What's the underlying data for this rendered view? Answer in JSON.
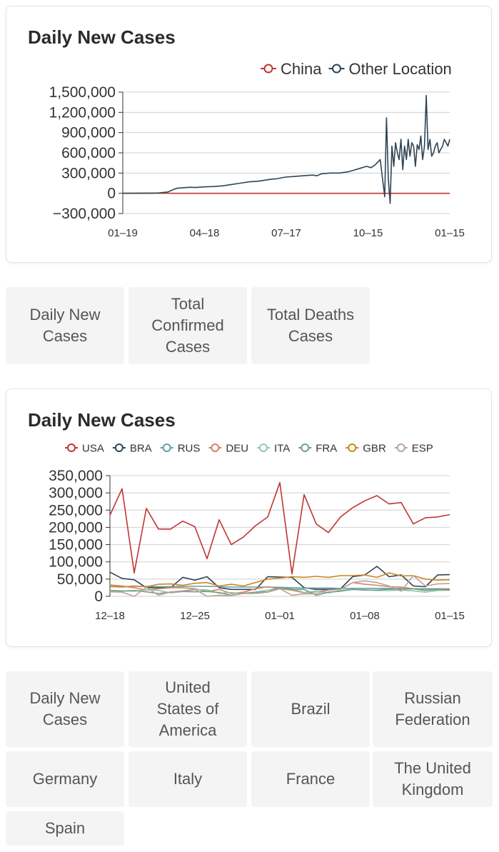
{
  "chart_data": [
    {
      "type": "line",
      "title": "Daily New Cases",
      "x_ticks": [
        "01–19",
        "04–18",
        "07–17",
        "10–15",
        "01–15"
      ],
      "y_ticks": [
        "1,500,000",
        "1,200,000",
        "900,000",
        "600,000",
        "300,000",
        "0",
        "−300,000"
      ],
      "ylim": [
        -300000,
        1500000
      ],
      "x_range_days": [
        0,
        362
      ],
      "grid": true,
      "legend_position": "top-right",
      "series": [
        {
          "name": "China",
          "color": "#c23531",
          "x": [
            0,
            10,
            20,
            30,
            40,
            50,
            60,
            90,
            120,
            150,
            180,
            210,
            240,
            270,
            300,
            330,
            362
          ],
          "values": [
            200,
            1500,
            3000,
            2500,
            600,
            200,
            100,
            50,
            30,
            40,
            50,
            30,
            20,
            20,
            20,
            100,
            150
          ]
        },
        {
          "name": "Other Location",
          "color": "#2f4554",
          "x": [
            0,
            10,
            20,
            30,
            40,
            50,
            55,
            60,
            65,
            70,
            75,
            80,
            90,
            100,
            110,
            120,
            130,
            140,
            150,
            160,
            165,
            170,
            180,
            190,
            200,
            210,
            215,
            220,
            230,
            240,
            250,
            255,
            260,
            265,
            270,
            275,
            280,
            285,
            290,
            292,
            294,
            296,
            298,
            300,
            302,
            304,
            306,
            308,
            310,
            312,
            314,
            316,
            318,
            320,
            322,
            324,
            326,
            328,
            330,
            332,
            334,
            336,
            338,
            340,
            342,
            344,
            346,
            348,
            350,
            352,
            354,
            356,
            358,
            360,
            362
          ],
          "values": [
            0,
            100,
            500,
            1000,
            5000,
            20000,
            50000,
            75000,
            80000,
            85000,
            90000,
            85000,
            95000,
            100000,
            110000,
            130000,
            150000,
            170000,
            180000,
            200000,
            210000,
            215000,
            240000,
            250000,
            260000,
            270000,
            260000,
            290000,
            300000,
            300000,
            320000,
            340000,
            360000,
            380000,
            400000,
            380000,
            430000,
            500000,
            -50000,
            1120000,
            200000,
            -150000,
            700000,
            400000,
            750000,
            600000,
            500000,
            800000,
            350000,
            700000,
            500000,
            800000,
            550000,
            750000,
            700000,
            400000,
            720000,
            650000,
            850000,
            500000,
            700000,
            1450000,
            650000,
            800000,
            550000,
            600000,
            700000,
            750000,
            600000,
            650000,
            700000,
            800000,
            750000,
            700000,
            800000
          ]
        }
      ]
    },
    {
      "type": "line",
      "title": "Daily New Cases",
      "x_ticks": [
        "12–18",
        "12–25",
        "01–01",
        "01–08",
        "01–15"
      ],
      "y_ticks": [
        "350,000",
        "300,000",
        "250,000",
        "200,000",
        "150,000",
        "100,000",
        "50,000",
        "0"
      ],
      "ylim": [
        0,
        350000
      ],
      "x_range_days": [
        0,
        28
      ],
      "grid": true,
      "legend_position": "top",
      "series": [
        {
          "name": "USA",
          "color": "#c23531",
          "values": [
            235000,
            312000,
            68000,
            255000,
            195000,
            195000,
            218000,
            202000,
            109000,
            222000,
            150000,
            172000,
            205000,
            230000,
            330000,
            65000,
            295000,
            210000,
            185000,
            230000,
            257000,
            277000,
            292000,
            268000,
            272000,
            210000,
            228000,
            230000,
            237000
          ]
        },
        {
          "name": "BRA",
          "color": "#2f4554",
          "values": [
            70000,
            52000,
            48000,
            25000,
            25000,
            25000,
            55000,
            47000,
            57000,
            25000,
            20000,
            20000,
            20000,
            57000,
            56000,
            55000,
            25000,
            20000,
            20000,
            22000,
            57000,
            62000,
            87000,
            57000,
            62000,
            30000,
            28000,
            62000,
            63000
          ]
        },
        {
          "name": "RUS",
          "color": "#61a0a8",
          "values": [
            29000,
            28000,
            29000,
            29000,
            28000,
            28000,
            29000,
            29000,
            29000,
            28000,
            27000,
            27000,
            27000,
            27000,
            26000,
            25000,
            24000,
            24000,
            24000,
            23000,
            23000,
            23000,
            23000,
            23000,
            23000,
            22000,
            22000,
            22000,
            22000
          ]
        },
        {
          "name": "DEU",
          "color": "#d48265",
          "values": [
            33000,
            30000,
            25000,
            18000,
            22000,
            25000,
            25000,
            22000,
            14000,
            20000,
            8000,
            12000,
            22000,
            28000,
            22000,
            18000,
            10000,
            13000,
            18000,
            20000,
            40000,
            35000,
            32000,
            28000,
            27000,
            22000,
            18000,
            20000,
            21000
          ]
        },
        {
          "name": "ITA",
          "color": "#91c7ae",
          "values": [
            17000,
            16000,
            15000,
            19000,
            17000,
            10000,
            14000,
            19000,
            19000,
            9000,
            11000,
            8000,
            12000,
            18000,
            23000,
            22000,
            11000,
            15000,
            10000,
            17000,
            20000,
            19000,
            17000,
            17000,
            18000,
            16000,
            12000,
            17000,
            18000
          ]
        },
        {
          "name": "FRA",
          "color": "#749f83",
          "values": [
            17000,
            15000,
            17000,
            13000,
            8000,
            12000,
            14000,
            13000,
            14000,
            11000,
            3000,
            9000,
            12000,
            13000,
            25000,
            20000,
            20000,
            3000,
            12000,
            15000,
            20000,
            18000,
            18000,
            21000,
            20000,
            22000,
            17000,
            20000,
            18000
          ]
        },
        {
          "name": "GBR",
          "color": "#ca8622",
          "values": [
            28000,
            27000,
            30000,
            28000,
            35000,
            36000,
            32000,
            38000,
            40000,
            30000,
            35000,
            30000,
            40000,
            50000,
            53000,
            57000,
            55000,
            58000,
            55000,
            60000,
            60000,
            62000,
            55000,
            68000,
            59000,
            60000,
            50000,
            47000,
            48000
          ]
        },
        {
          "name": "ESP",
          "color": "#bda29a",
          "values": [
            13000,
            12000,
            0,
            26000,
            3000,
            13000,
            16000,
            20000,
            0,
            3000,
            2000,
            8000,
            8000,
            12000,
            22000,
            3000,
            7000,
            7000,
            18000,
            20000,
            40000,
            45000,
            40000,
            30000,
            15000,
            60000,
            30000,
            36000,
            37000
          ]
        }
      ]
    }
  ],
  "tabs_top": [
    {
      "label": "Daily New\nCases",
      "active": true
    },
    {
      "label": "Total\nConfirmed\nCases",
      "active": false
    },
    {
      "label": "Total Deaths\nCases",
      "active": false
    }
  ],
  "tabs_bottom": [
    {
      "label": "Daily New\nCases",
      "active": true
    },
    {
      "label": "United\nStates of\nAmerica",
      "active": false
    },
    {
      "label": "Brazil",
      "active": false
    },
    {
      "label": "Russian\nFederation",
      "active": false
    },
    {
      "label": "Germany",
      "active": false
    },
    {
      "label": "Italy",
      "active": false
    },
    {
      "label": "France",
      "active": false
    },
    {
      "label": "The United\nKingdom",
      "active": false
    },
    {
      "label": "Spain",
      "active": false
    }
  ]
}
